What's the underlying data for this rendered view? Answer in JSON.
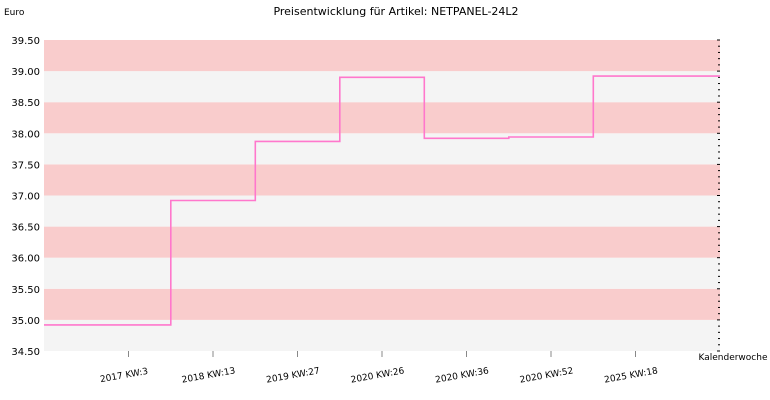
{
  "chart_data": {
    "type": "line",
    "title": "Preisentwicklung für Artikel: NETPANEL-24L2",
    "ylabel": "Euro",
    "xlabel": "Kalenderwoche",
    "ylim": [
      34.5,
      39.5
    ],
    "yticks": [
      "34.50",
      "35.00",
      "35.50",
      "36.00",
      "36.50",
      "37.00",
      "37.50",
      "38.00",
      "38.50",
      "39.00",
      "39.50"
    ],
    "categories": [
      "2017 KW:3",
      "2018 KW:13",
      "2019 KW:27",
      "2020 KW:26",
      "2020 KW:36",
      "2020 KW:52",
      "2025 KW:18"
    ],
    "series": [
      {
        "values": [
          34.92,
          36.92,
          37.87,
          38.9,
          37.92,
          37.94,
          38.92
        ]
      }
    ],
    "style": "step",
    "colors": {
      "line": "#ff77cc",
      "band_a": "#f9cccc",
      "band_b": "#f4f4f4"
    }
  }
}
